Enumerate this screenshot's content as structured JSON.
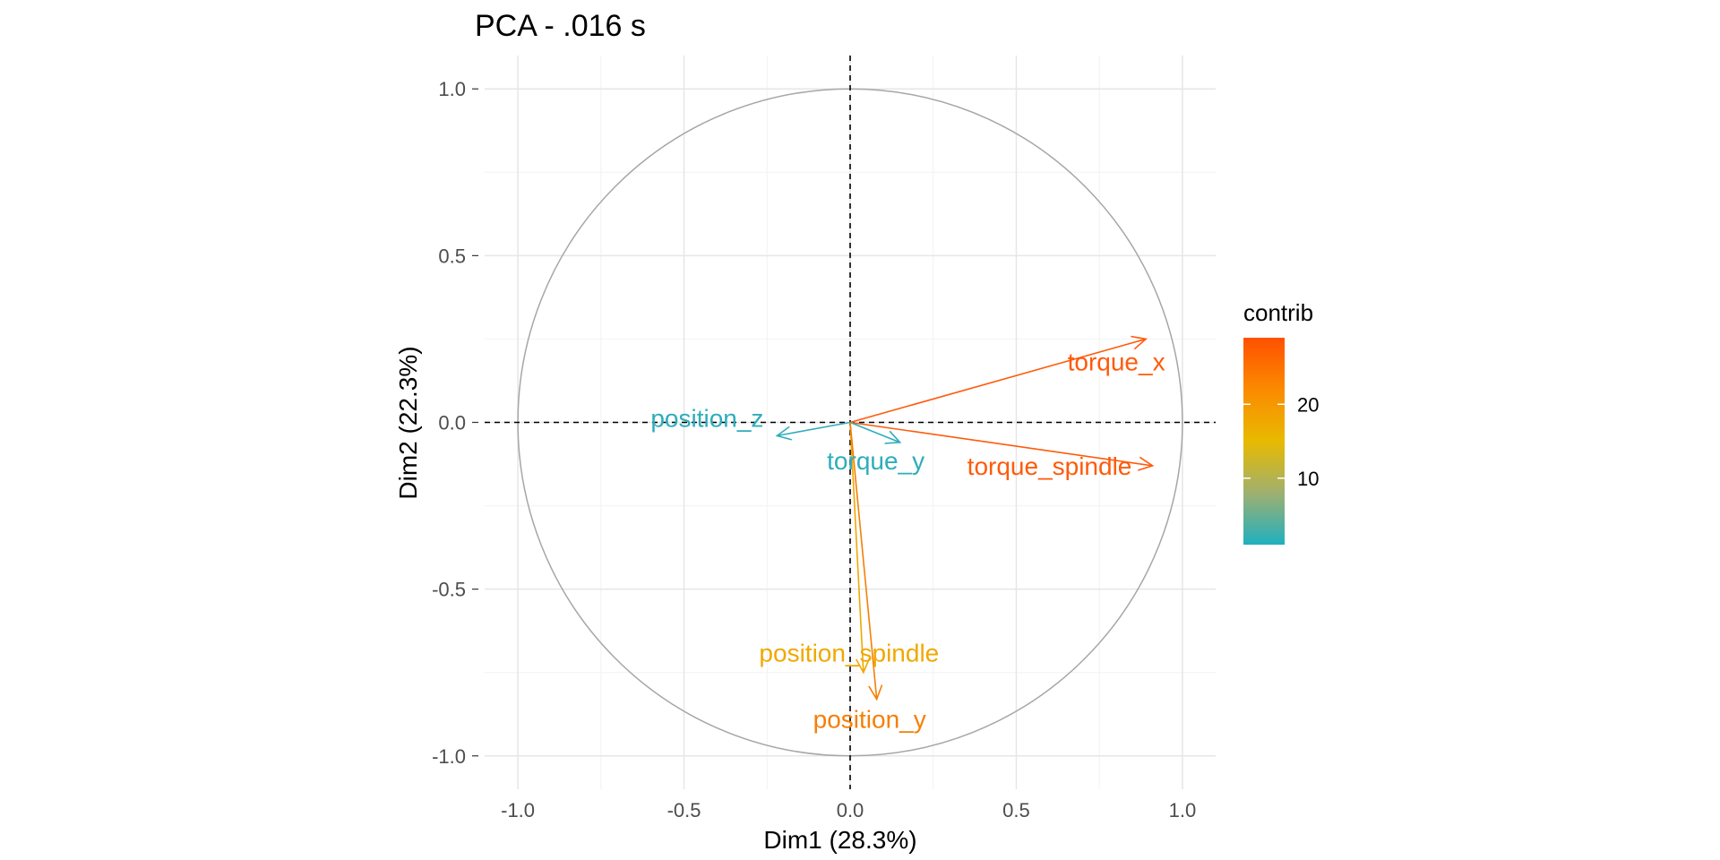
{
  "chart_data": {
    "type": "pca-variable-correlation-circle",
    "title": "PCA - .016 s",
    "xlabel": "Dim1 (28.3%)",
    "ylabel": "Dim2 (22.3%)",
    "xlim": [
      -1.1,
      1.1
    ],
    "ylim": [
      -1.1,
      1.1
    ],
    "x_ticks": [
      -1.0,
      -0.5,
      0.0,
      0.5,
      1.0
    ],
    "y_ticks": [
      -1.0,
      -0.5,
      0.0,
      0.5,
      1.0
    ],
    "x_tick_labels": [
      "-1.0",
      "-0.5",
      "0.0",
      "0.5",
      "1.0"
    ],
    "y_tick_labels": [
      "-1.0",
      "-0.5",
      "0.0",
      "0.5",
      "1.0"
    ],
    "grid": true,
    "unit_circle": true,
    "reference_lines": {
      "x": 0,
      "y": 0,
      "style": "dashed"
    },
    "variables": [
      {
        "name": "torque_x",
        "x": 0.89,
        "y": 0.25,
        "contrib": 28.0,
        "color": "#ff5a0a"
      },
      {
        "name": "torque_spindle",
        "x": 0.91,
        "y": -0.13,
        "contrib": 28.5,
        "color": "#ff5a0a"
      },
      {
        "name": "position_z",
        "x": -0.22,
        "y": -0.04,
        "contrib": 2.0,
        "color": "#2eadbb"
      },
      {
        "name": "torque_y",
        "x": 0.15,
        "y": -0.06,
        "contrib": 1.8,
        "color": "#2eadbb"
      },
      {
        "name": "position_spindle",
        "x": 0.04,
        "y": -0.75,
        "contrib": 17.5,
        "color": "#f0a800"
      },
      {
        "name": "position_y",
        "x": 0.08,
        "y": -0.83,
        "contrib": 22.0,
        "color": "#f57f05"
      }
    ],
    "legend": {
      "title": "contrib",
      "position": "right",
      "range": [
        1,
        29
      ],
      "ticks": [
        10,
        20
      ],
      "tick_labels": [
        "10",
        "20"
      ],
      "gradient_colors": [
        "#1fb0bf",
        "#9fb070",
        "#e8ba00",
        "#fb8a00",
        "#ff5000"
      ]
    }
  }
}
